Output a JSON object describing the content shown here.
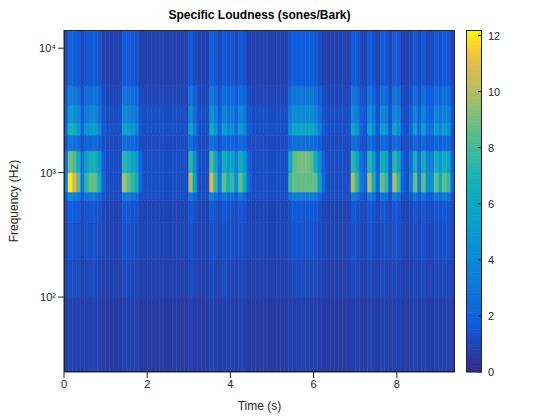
{
  "chart_data": {
    "type": "heatmap",
    "title": "Specific Loudness (sones/Bark)",
    "x_label": "Time (s)",
    "y_label": "Frequency (Hz)",
    "log": "y",
    "xlim": [
      0,
      9.4
    ],
    "xticks": [
      0,
      2,
      4,
      6,
      8
    ],
    "ylim": [
      25,
      14000
    ],
    "yticks": [
      {
        "value": 100,
        "label": "10²"
      },
      {
        "value": 1000,
        "label": "10³"
      },
      {
        "value": 10000,
        "label": "10⁴"
      }
    ],
    "zlim": [
      0,
      12.2
    ],
    "zticks": [
      0,
      2,
      4,
      6,
      8,
      10,
      12
    ],
    "x": [
      0,
      0.1,
      0.2,
      0.3,
      0.4,
      0.5,
      0.6,
      0.7,
      0.8,
      0.9,
      1,
      1.1,
      1.2,
      1.3,
      1.4,
      1.5,
      1.6,
      1.7,
      1.8,
      1.9,
      2,
      2.1,
      2.2,
      2.3,
      2.4,
      2.5,
      2.6,
      2.7,
      2.8,
      2.9,
      3,
      3.1,
      3.2,
      3.3,
      3.4,
      3.5,
      3.6,
      3.7,
      3.8,
      3.9,
      4,
      4.1,
      4.2,
      4.3,
      4.4,
      4.5,
      4.6,
      4.7,
      4.8,
      4.9,
      5,
      5.1,
      5.2,
      5.3,
      5.4,
      5.5,
      5.6,
      5.7,
      5.8,
      5.9,
      6,
      6.1,
      6.2,
      6.3,
      6.4,
      6.5,
      6.6,
      6.7,
      6.8,
      6.9,
      7,
      7.1,
      7.2,
      7.3,
      7.4,
      7.5,
      7.6,
      7.7,
      7.8,
      7.9,
      8,
      8.1,
      8.2,
      8.3,
      8.4,
      8.5,
      8.6,
      8.7,
      8.8,
      8.9,
      9,
      9.1,
      9.2,
      9.3,
      9.4
    ],
    "y": [
      25,
      100,
      200,
      400,
      600,
      700,
      1000,
      1500,
      2000,
      2500,
      3500,
      5000,
      14000
    ],
    "values": [
      [
        0.7,
        0.9,
        0.9,
        0.8,
        0.7,
        0.8,
        0.8,
        0.8,
        0.8,
        0.6,
        0.6,
        0.6,
        0.6,
        0.6,
        0.8,
        0.8,
        0.8,
        0.8,
        0.6,
        0.6,
        0.6,
        0.6,
        0.6,
        0.6,
        0.6,
        0.6,
        0.6,
        0.6,
        0.6,
        0.6,
        0.8,
        0.7,
        0.6,
        0.6,
        0.6,
        0.9,
        0.8,
        0.7,
        0.8,
        0.8,
        0.8,
        0.7,
        0.8,
        0.8,
        0.6,
        0.6,
        0.6,
        0.6,
        0.6,
        0.6,
        0.6,
        0.6,
        0.6,
        0.6,
        0.8,
        0.8,
        0.8,
        0.8,
        0.8,
        0.8,
        0.8,
        0.7,
        0.6,
        0.6,
        0.6,
        0.6,
        0.6,
        0.6,
        0.6,
        0.8,
        0.8,
        0.7,
        0.6,
        0.8,
        0.8,
        0.6,
        0.8,
        0.8,
        0.6,
        0.8,
        0.8,
        0.6,
        0.6,
        0.7,
        0.8,
        0.7,
        0.8,
        0.7,
        0.7,
        0.8,
        0.8,
        0.8,
        0.8,
        0.6
      ],
      [
        0.9,
        1.2,
        1.2,
        1.1,
        0.9,
        1.0,
        1.1,
        1.1,
        1.0,
        0.8,
        0.8,
        0.8,
        0.8,
        0.8,
        1.1,
        1.1,
        1.0,
        1.0,
        0.8,
        0.8,
        0.8,
        0.8,
        0.8,
        0.8,
        0.8,
        0.8,
        0.8,
        0.8,
        0.8,
        0.8,
        1.1,
        1.0,
        0.8,
        0.8,
        0.8,
        1.2,
        1.0,
        0.9,
        1.1,
        1.0,
        1.0,
        0.9,
        1.1,
        1.0,
        0.8,
        0.8,
        0.8,
        0.8,
        0.8,
        0.8,
        0.8,
        0.8,
        0.8,
        0.8,
        1.0,
        1.1,
        1.1,
        1.1,
        1.1,
        1.1,
        1.1,
        1.0,
        0.8,
        0.8,
        0.8,
        0.8,
        0.8,
        0.8,
        0.8,
        1.1,
        1.0,
        0.9,
        0.8,
        1.1,
        1.0,
        0.8,
        1.1,
        1.0,
        0.8,
        1.1,
        1.0,
        0.8,
        0.8,
        0.9,
        1.1,
        0.9,
        1.1,
        0.9,
        0.9,
        1.1,
        1.0,
        1.1,
        1.0,
        0.8
      ],
      [
        1.0,
        1.5,
        1.4,
        1.3,
        1.0,
        1.3,
        1.3,
        1.3,
        1.2,
        1.0,
        0.9,
        0.9,
        0.9,
        0.9,
        1.4,
        1.3,
        1.3,
        1.2,
        1.0,
        0.9,
        0.9,
        0.9,
        0.9,
        0.9,
        0.9,
        0.9,
        0.9,
        0.9,
        0.9,
        0.9,
        1.4,
        1.1,
        0.9,
        0.9,
        0.9,
        1.4,
        1.3,
        1.0,
        1.3,
        1.2,
        1.3,
        1.1,
        1.3,
        1.2,
        1.0,
        0.9,
        0.9,
        0.9,
        0.9,
        0.9,
        0.9,
        0.9,
        0.9,
        0.9,
        1.3,
        1.4,
        1.4,
        1.4,
        1.4,
        1.4,
        1.3,
        1.1,
        1.0,
        0.9,
        0.9,
        0.9,
        0.9,
        0.9,
        0.9,
        1.4,
        1.3,
        1.0,
        1.0,
        1.4,
        1.2,
        1.0,
        1.3,
        1.3,
        1.0,
        1.4,
        1.3,
        1.0,
        0.9,
        1.0,
        1.3,
        1.0,
        1.3,
        1.1,
        1.1,
        1.3,
        1.2,
        1.3,
        1.3,
        1.0
      ],
      [
        1.1,
        1.8,
        1.7,
        1.5,
        1.1,
        1.4,
        1.5,
        1.5,
        1.4,
        1.0,
        0.9,
        0.9,
        0.9,
        0.9,
        1.6,
        1.5,
        1.4,
        1.4,
        1.0,
        0.9,
        0.9,
        0.9,
        0.9,
        0.9,
        0.9,
        0.9,
        0.9,
        0.9,
        0.9,
        0.9,
        1.6,
        1.3,
        0.9,
        0.9,
        0.9,
        1.7,
        1.4,
        1.1,
        1.5,
        1.4,
        1.4,
        1.2,
        1.5,
        1.4,
        1.0,
        0.9,
        0.9,
        0.9,
        0.9,
        0.9,
        0.9,
        0.9,
        0.9,
        0.9,
        1.4,
        1.6,
        1.6,
        1.6,
        1.6,
        1.6,
        1.5,
        1.3,
        1.0,
        0.9,
        0.9,
        0.9,
        0.9,
        0.9,
        0.9,
        1.6,
        1.4,
        1.1,
        1.0,
        1.6,
        1.4,
        1.0,
        1.5,
        1.4,
        1.0,
        1.6,
        1.4,
        1.0,
        0.9,
        1.1,
        1.5,
        1.1,
        1.5,
        1.2,
        1.2,
        1.5,
        1.4,
        1.5,
        1.4,
        1.0
      ],
      [
        1.6,
        4.0,
        3.7,
        3.1,
        1.6,
        2.8,
        3.1,
        3.1,
        2.5,
        1.3,
        1.2,
        1.2,
        1.2,
        1.2,
        3.4,
        3.1,
        2.8,
        2.5,
        1.3,
        1.2,
        1.2,
        1.2,
        1.2,
        1.2,
        1.2,
        1.2,
        1.2,
        1.2,
        1.2,
        1.2,
        3.4,
        2.2,
        1.2,
        1.2,
        1.2,
        3.7,
        2.8,
        1.6,
        3.1,
        2.5,
        2.8,
        1.9,
        3.1,
        2.5,
        1.3,
        1.2,
        1.2,
        1.2,
        1.2,
        1.2,
        1.2,
        1.2,
        1.2,
        1.2,
        2.8,
        3.4,
        3.4,
        3.4,
        3.4,
        3.4,
        3.1,
        2.2,
        1.3,
        1.2,
        1.2,
        1.2,
        1.2,
        1.2,
        1.2,
        3.4,
        2.8,
        1.6,
        1.3,
        3.4,
        2.5,
        1.3,
        3.1,
        2.8,
        1.3,
        3.4,
        2.8,
        1.3,
        1.2,
        1.6,
        3.1,
        1.6,
        3.1,
        1.9,
        1.9,
        3.1,
        2.5,
        3.1,
        2.8,
        1.3
      ],
      [
        3.3,
        12.0,
        10.9,
        8.7,
        3.3,
        7.6,
        8.7,
        8.7,
        6.6,
        2.2,
        1.2,
        1.2,
        1.2,
        1.2,
        9.8,
        8.7,
        7.6,
        6.6,
        2.2,
        1.2,
        1.2,
        1.2,
        1.2,
        1.2,
        1.2,
        1.2,
        1.2,
        1.2,
        1.2,
        1.2,
        9.8,
        5.5,
        1.2,
        1.2,
        1.2,
        10.9,
        7.6,
        3.3,
        8.7,
        6.6,
        7.6,
        4.4,
        8.7,
        6.6,
        2.2,
        1.2,
        1.2,
        1.2,
        1.2,
        1.2,
        1.2,
        1.2,
        1.2,
        1.2,
        7.6,
        8.7,
        8.7,
        8.7,
        8.7,
        8.7,
        8.7,
        5.5,
        2.2,
        1.2,
        1.2,
        1.2,
        1.2,
        1.2,
        1.2,
        9.8,
        7.6,
        3.3,
        2.2,
        9.8,
        6.6,
        2.2,
        8.7,
        7.6,
        2.2,
        9.8,
        7.6,
        2.2,
        1.2,
        3.3,
        8.7,
        3.3,
        8.7,
        4.4,
        4.4,
        8.7,
        6.6,
        8.7,
        7.6,
        2.2
      ],
      [
        2.7,
        9.0,
        8.2,
        6.6,
        2.7,
        5.8,
        6.6,
        6.6,
        5.1,
        1.9,
        1.2,
        1.2,
        1.2,
        1.2,
        7.4,
        6.6,
        5.8,
        5.1,
        1.9,
        1.2,
        1.2,
        1.2,
        1.2,
        1.2,
        1.2,
        1.2,
        1.2,
        1.2,
        1.2,
        1.2,
        7.4,
        4.3,
        1.2,
        1.2,
        1.2,
        8.2,
        5.8,
        2.7,
        6.6,
        5.1,
        5.8,
        3.5,
        6.6,
        5.1,
        1.9,
        1.2,
        1.2,
        1.2,
        1.2,
        1.2,
        1.2,
        1.2,
        1.2,
        1.2,
        5.8,
        8.6,
        9.0,
        9.0,
        9.0,
        8.6,
        6.6,
        4.3,
        1.9,
        1.2,
        1.2,
        1.2,
        1.2,
        1.2,
        1.2,
        7.4,
        5.8,
        2.7,
        1.9,
        7.4,
        5.1,
        1.9,
        6.6,
        5.8,
        1.9,
        7.4,
        5.8,
        1.9,
        1.2,
        2.7,
        6.6,
        2.7,
        6.6,
        3.5,
        3.5,
        6.6,
        5.1,
        6.6,
        5.8,
        1.9
      ],
      [
        1.4,
        3.0,
        2.8,
        2.4,
        1.4,
        2.2,
        2.4,
        2.4,
        2.0,
        1.2,
        1.1,
        1.1,
        1.1,
        1.1,
        2.6,
        2.4,
        2.2,
        2.0,
        1.2,
        1.1,
        1.1,
        1.1,
        1.1,
        1.1,
        1.1,
        1.1,
        1.1,
        1.1,
        1.1,
        1.1,
        2.6,
        1.8,
        1.1,
        1.1,
        1.1,
        2.8,
        2.2,
        1.4,
        2.4,
        2.0,
        2.2,
        1.6,
        2.4,
        2.0,
        1.2,
        1.1,
        1.1,
        1.1,
        1.1,
        1.1,
        1.1,
        1.1,
        1.1,
        1.1,
        2.2,
        2.6,
        2.6,
        2.6,
        2.6,
        2.6,
        2.4,
        1.8,
        1.2,
        1.1,
        1.1,
        1.1,
        1.1,
        1.1,
        1.1,
        2.6,
        2.2,
        1.4,
        1.2,
        2.6,
        2.0,
        1.2,
        2.4,
        2.2,
        1.2,
        2.6,
        2.2,
        1.2,
        1.1,
        1.4,
        2.4,
        1.4,
        2.4,
        1.6,
        1.6,
        2.4,
        2.0,
        2.4,
        2.2,
        1.2
      ],
      [
        2.2,
        7.0,
        6.4,
        5.2,
        2.2,
        4.6,
        5.2,
        5.2,
        4.0,
        1.6,
        1.3,
        1.3,
        1.3,
        1.3,
        5.8,
        5.2,
        4.6,
        4.0,
        1.6,
        1.3,
        1.3,
        1.3,
        1.3,
        1.3,
        1.3,
        1.3,
        1.3,
        1.3,
        1.3,
        1.3,
        5.8,
        3.4,
        1.3,
        1.3,
        1.3,
        6.4,
        4.6,
        2.2,
        5.2,
        4.0,
        4.6,
        2.8,
        5.2,
        4.0,
        1.6,
        1.3,
        1.3,
        1.3,
        1.3,
        1.3,
        1.3,
        1.3,
        1.3,
        1.3,
        4.6,
        5.8,
        5.8,
        5.8,
        5.8,
        5.8,
        5.2,
        3.4,
        1.6,
        1.3,
        1.3,
        1.3,
        1.3,
        1.3,
        1.3,
        5.8,
        4.6,
        2.2,
        1.6,
        5.8,
        4.0,
        1.6,
        5.2,
        4.6,
        1.6,
        5.8,
        4.6,
        1.6,
        1.3,
        2.2,
        5.2,
        2.2,
        5.2,
        2.8,
        2.8,
        5.2,
        4.0,
        5.2,
        4.6,
        1.6
      ],
      [
        1.8,
        5.0,
        4.6,
        3.8,
        1.8,
        3.4,
        3.8,
        3.8,
        3.0,
        1.4,
        1.2,
        1.2,
        1.2,
        1.2,
        4.2,
        3.8,
        3.4,
        3.0,
        1.4,
        1.2,
        1.2,
        1.2,
        1.2,
        1.2,
        1.2,
        1.2,
        1.2,
        1.2,
        1.2,
        1.2,
        4.2,
        2.6,
        1.2,
        1.2,
        1.2,
        4.6,
        3.4,
        1.8,
        3.8,
        3.0,
        3.4,
        2.2,
        3.8,
        3.0,
        1.4,
        1.2,
        1.2,
        1.2,
        1.2,
        1.2,
        1.2,
        1.2,
        1.2,
        1.2,
        3.4,
        4.2,
        4.2,
        4.2,
        4.2,
        4.2,
        3.8,
        2.6,
        1.4,
        1.2,
        1.2,
        1.2,
        1.2,
        1.2,
        1.2,
        4.2,
        3.4,
        1.8,
        1.4,
        4.2,
        3.0,
        1.4,
        3.8,
        3.4,
        1.4,
        4.2,
        3.4,
        1.4,
        1.2,
        1.8,
        3.8,
        1.8,
        3.8,
        2.2,
        2.2,
        3.8,
        3.0,
        3.8,
        3.4,
        1.4
      ],
      [
        1.4,
        3.5,
        3.2,
        2.7,
        1.4,
        2.5,
        2.7,
        2.7,
        2.2,
        1.2,
        1.0,
        1.0,
        1.0,
        1.0,
        3.0,
        2.7,
        2.5,
        2.2,
        1.2,
        1.0,
        1.0,
        1.0,
        1.0,
        1.0,
        1.0,
        1.0,
        1.0,
        1.0,
        1.0,
        1.0,
        3.0,
        1.9,
        1.0,
        1.0,
        1.0,
        3.2,
        2.5,
        1.4,
        2.7,
        2.2,
        2.5,
        1.7,
        2.7,
        2.2,
        1.2,
        1.0,
        1.0,
        1.0,
        1.0,
        1.0,
        1.0,
        1.0,
        1.0,
        1.0,
        2.5,
        3.0,
        3.0,
        3.0,
        3.0,
        3.0,
        2.7,
        1.9,
        1.2,
        1.0,
        1.0,
        1.0,
        1.0,
        1.0,
        1.0,
        3.0,
        2.5,
        1.4,
        1.2,
        3.0,
        2.2,
        1.2,
        2.7,
        2.5,
        1.2,
        3.0,
        2.5,
        1.2,
        1.0,
        1.4,
        2.7,
        1.4,
        2.7,
        1.7,
        1.7,
        2.7,
        2.2,
        2.7,
        2.5,
        1.2
      ],
      [
        1.0,
        2.0,
        1.9,
        1.6,
        1.0,
        1.5,
        1.6,
        1.6,
        1.4,
        0.8,
        0.8,
        0.8,
        0.8,
        0.8,
        1.7,
        1.6,
        1.5,
        1.4,
        0.8,
        0.8,
        0.8,
        0.8,
        0.8,
        0.8,
        0.8,
        0.8,
        0.8,
        0.8,
        0.8,
        0.8,
        1.7,
        1.2,
        0.8,
        0.8,
        0.8,
        1.9,
        1.5,
        1.0,
        1.6,
        1.4,
        1.5,
        1.1,
        1.6,
        1.4,
        0.8,
        0.8,
        0.8,
        0.8,
        0.8,
        0.8,
        0.8,
        0.8,
        0.8,
        0.8,
        1.5,
        1.7,
        1.7,
        1.7,
        1.7,
        1.7,
        1.6,
        1.2,
        0.8,
        0.8,
        0.8,
        0.8,
        0.8,
        0.8,
        0.8,
        1.7,
        1.5,
        1.0,
        0.8,
        1.7,
        1.4,
        0.8,
        1.6,
        1.5,
        0.8,
        1.7,
        1.5,
        0.8,
        0.8,
        1.0,
        1.6,
        1.0,
        1.6,
        1.1,
        1.1,
        1.6,
        1.4,
        1.6,
        1.5,
        0.8
      ]
    ]
  }
}
